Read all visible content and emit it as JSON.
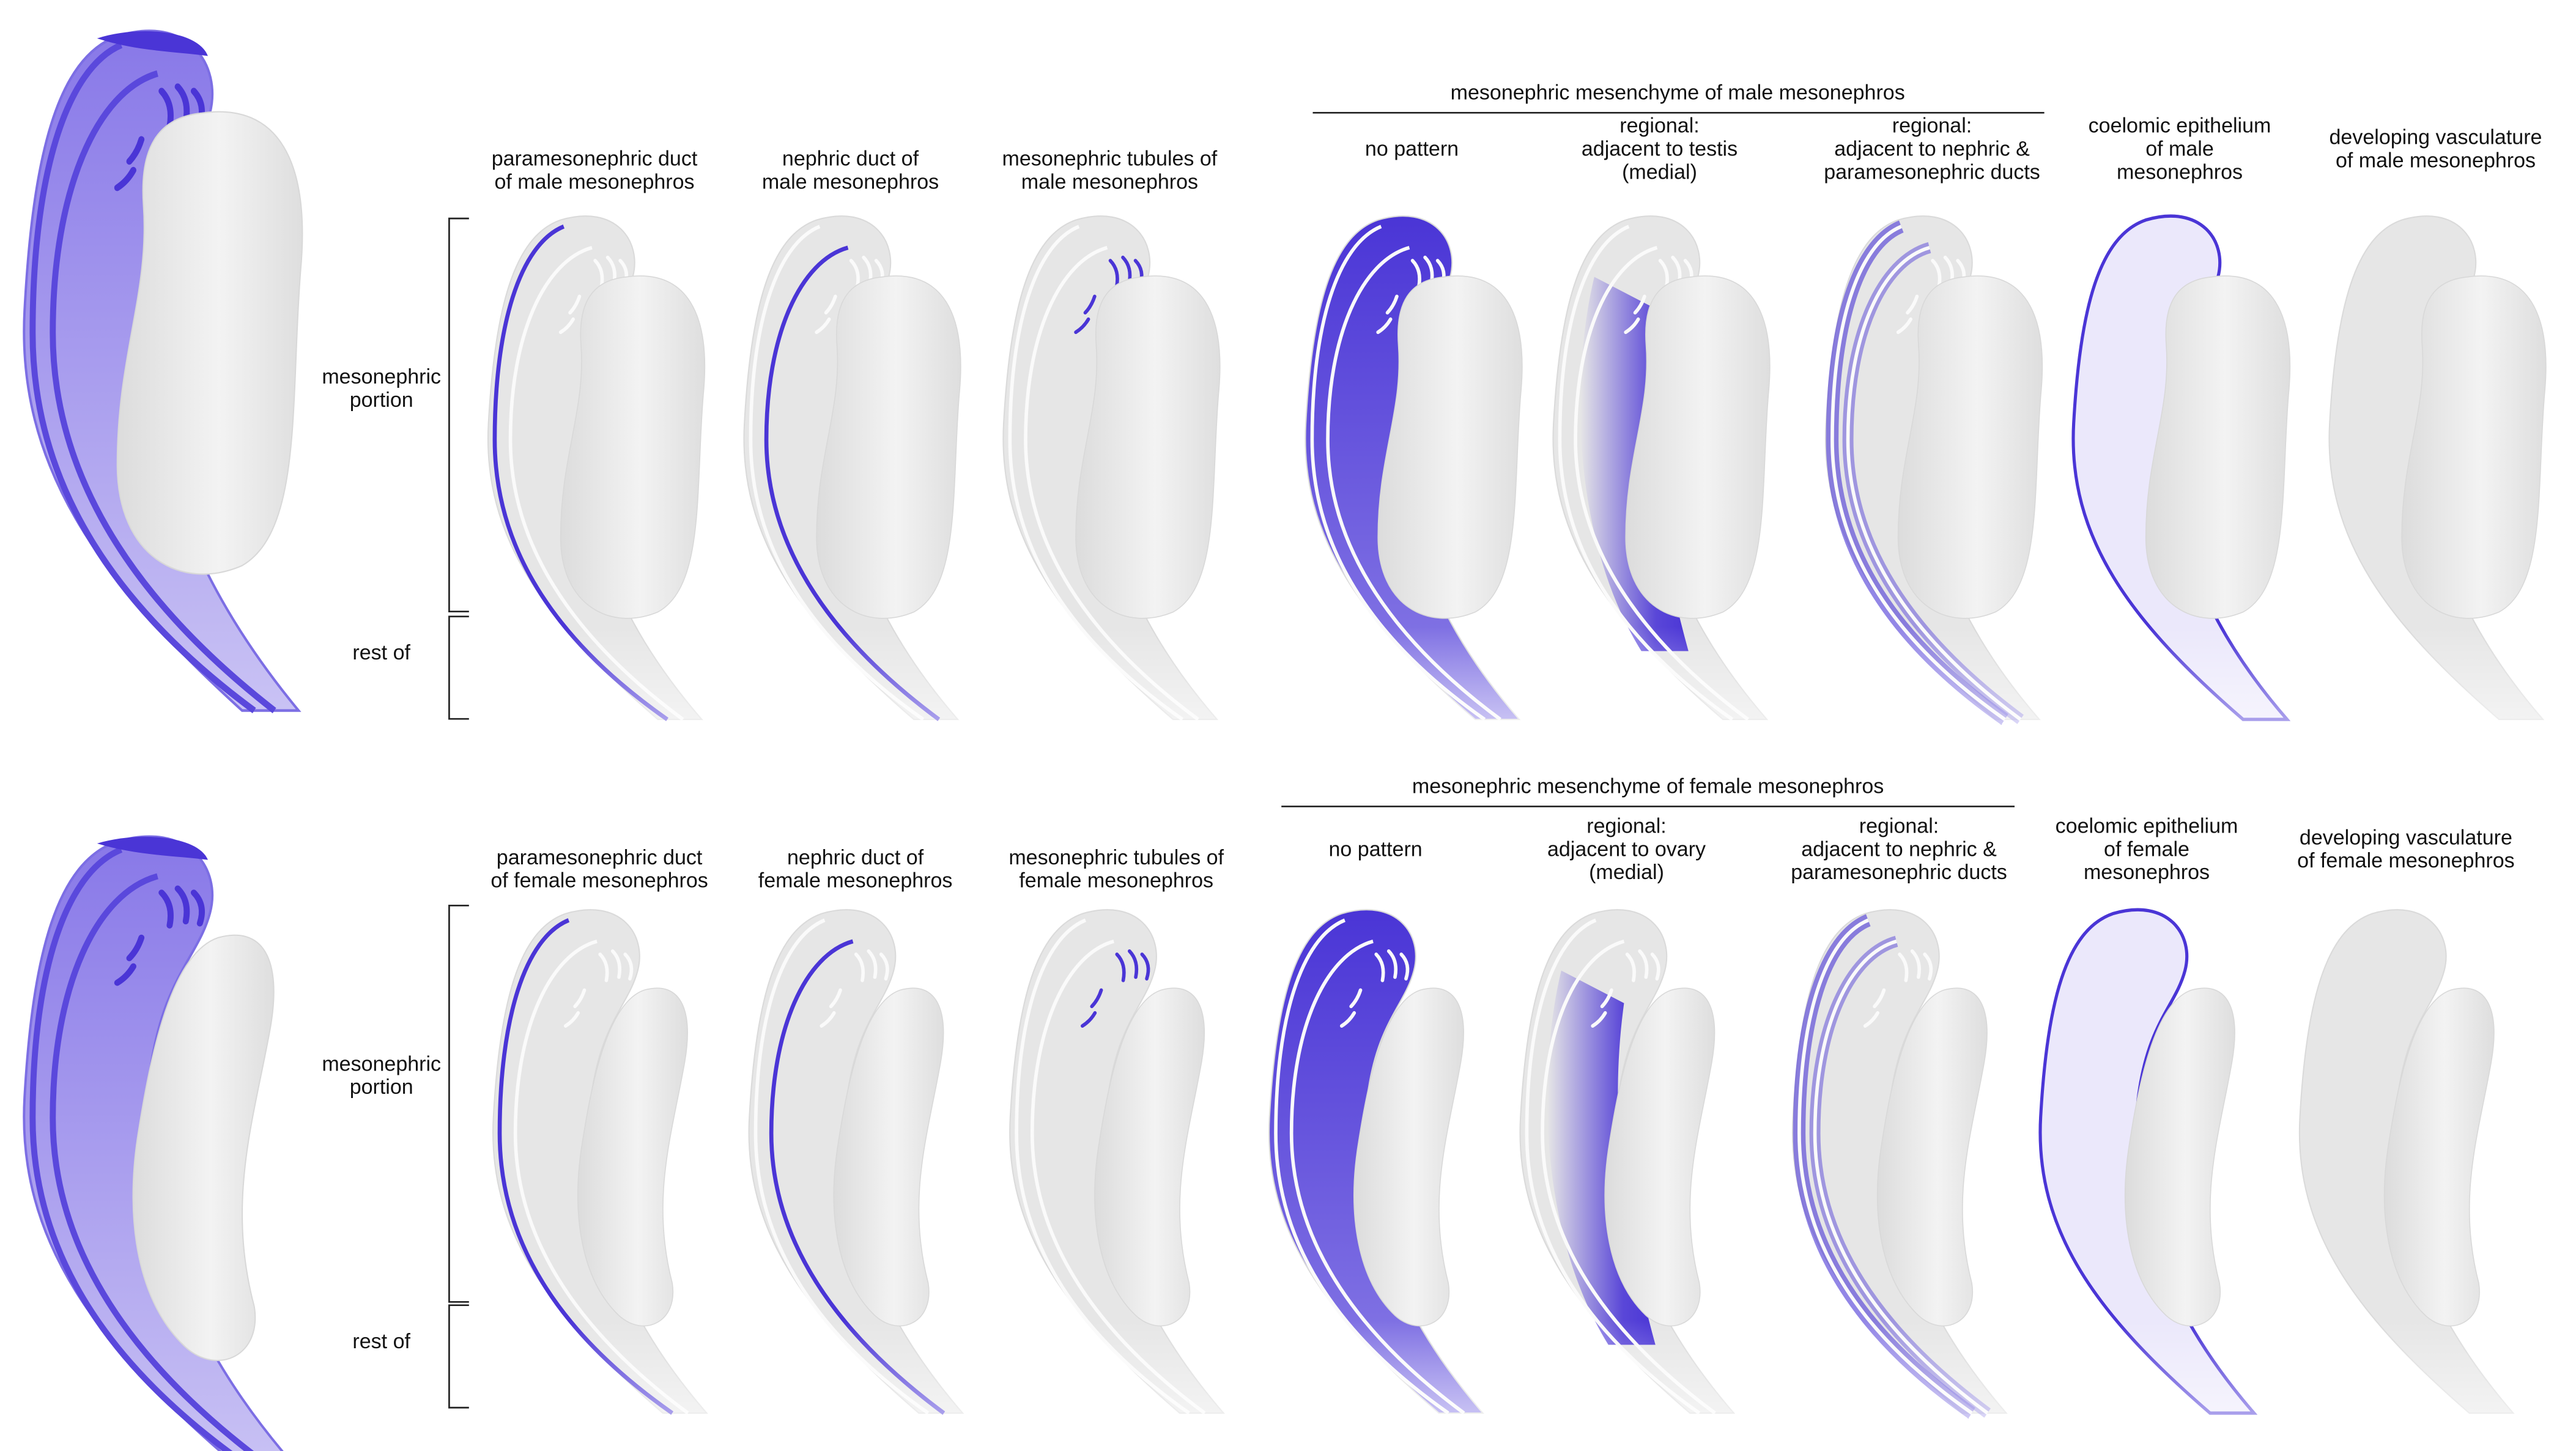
{
  "colors": {
    "expression": "#4a35d6",
    "expression_light": "#ebe8fb",
    "tissue": "#e6e6e6",
    "vessel_overview": "#e0305a"
  },
  "rows": [
    {
      "sex": "male",
      "group_header": "mesonephric mesenchyme of male mesonephros",
      "bracket_labels": {
        "mesonephric": [
          "mesonephric",
          "portion"
        ],
        "rest": [
          "rest of"
        ]
      },
      "panels": [
        {
          "type": "paramesonephric",
          "lines": [
            "paramesonephric duct",
            "of male mesonephros"
          ]
        },
        {
          "type": "nephric",
          "lines": [
            "nephric duct of",
            "male mesonephros"
          ]
        },
        {
          "type": "tubules",
          "lines": [
            "mesonephric tubules of",
            "male mesonephros"
          ]
        },
        {
          "type": "mes-all",
          "lines": [
            "no pattern"
          ]
        },
        {
          "type": "mes-medial",
          "lines": [
            "regional:",
            "adjacent to testis",
            "(medial)"
          ]
        },
        {
          "type": "mes-ducts",
          "lines": [
            "regional:",
            "adjacent to nephric &",
            "paramesonephric ducts"
          ]
        },
        {
          "type": "coelomic",
          "lines": [
            "coelomic epithelium",
            "of male",
            "mesonephros"
          ]
        },
        {
          "type": "vasculature",
          "lines": [
            "developing vasculature",
            "of male mesonephros"
          ]
        }
      ]
    },
    {
      "sex": "female",
      "group_header": "mesonephric mesenchyme of female mesonephros",
      "bracket_labels": {
        "mesonephric": [
          "mesonephric",
          "portion"
        ],
        "rest": [
          "rest of"
        ]
      },
      "panels": [
        {
          "type": "paramesonephric",
          "lines": [
            "paramesonephric duct",
            "of female mesonephros"
          ]
        },
        {
          "type": "nephric",
          "lines": [
            "nephric duct of",
            "female mesonephros"
          ]
        },
        {
          "type": "tubules",
          "lines": [
            "mesonephric tubules of",
            "female mesonephros"
          ]
        },
        {
          "type": "mes-all",
          "lines": [
            "no pattern"
          ]
        },
        {
          "type": "mes-medial",
          "lines": [
            "regional:",
            "adjacent to ovary",
            "(medial)"
          ]
        },
        {
          "type": "mes-ducts",
          "lines": [
            "regional:",
            "adjacent to nephric &",
            "paramesonephric ducts"
          ]
        },
        {
          "type": "coelomic",
          "lines": [
            "coelomic epithelium",
            "of female",
            "mesonephros"
          ]
        },
        {
          "type": "vasculature",
          "lines": [
            "developing vasculature",
            "of female mesonephros"
          ]
        }
      ]
    }
  ]
}
